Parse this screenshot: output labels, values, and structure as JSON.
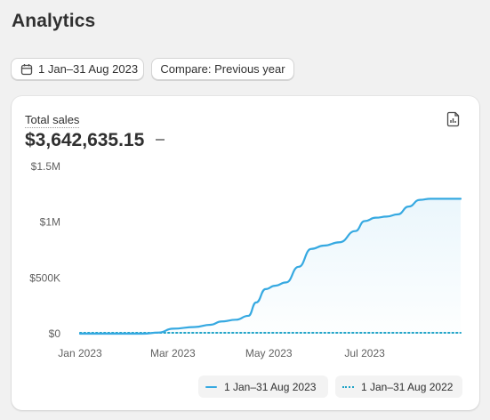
{
  "page": {
    "title": "Analytics"
  },
  "toolbar": {
    "date_range_label": "1 Jan–31 Aug 2023",
    "compare_label": "Compare: Previous year",
    "calendar_icon": "calendar-icon"
  },
  "card": {
    "metric_label": "Total sales",
    "metric_value": "$3,642,635.15",
    "change_indicator": "—",
    "export_icon": "export-report-icon"
  },
  "colors": {
    "primary_series": "#36a9e1",
    "comparison_series": "#1fa3c7"
  },
  "chart_data": {
    "type": "line",
    "y_ticks": [
      "$1.5M",
      "$1M",
      "$500K",
      "$0"
    ],
    "y_tick_values": [
      1500000,
      1000000,
      500000,
      0
    ],
    "x_ticks": [
      "Jan 2023",
      "Mar 2023",
      "May 2023",
      "Jul 2023"
    ],
    "ylim": [
      0,
      1500000
    ],
    "xlim": [
      "2023-01-01",
      "2023-08-31"
    ],
    "grid": false,
    "legend_placement": "bottom-right",
    "series": [
      {
        "name": "1 Jan–31 Aug 2023",
        "style": "solid",
        "area_fill": true,
        "x": [
          "2023-01-01",
          "2023-01-20",
          "2023-02-01",
          "2023-02-10",
          "2023-02-20",
          "2023-03-01",
          "2023-03-15",
          "2023-03-25",
          "2023-04-01",
          "2023-04-10",
          "2023-04-18",
          "2023-04-23",
          "2023-04-29",
          "2023-05-05",
          "2023-05-12",
          "2023-05-20",
          "2023-05-28",
          "2023-06-05",
          "2023-06-15",
          "2023-06-25",
          "2023-07-01",
          "2023-07-08",
          "2023-07-15",
          "2023-07-22",
          "2023-07-29",
          "2023-08-05",
          "2023-08-12",
          "2023-08-20",
          "2023-08-31"
        ],
        "values": [
          0,
          0,
          0,
          0,
          10000,
          45000,
          60000,
          80000,
          110000,
          125000,
          160000,
          280000,
          400000,
          430000,
          460000,
          600000,
          760000,
          790000,
          820000,
          920000,
          1010000,
          1040000,
          1050000,
          1070000,
          1140000,
          1200000,
          1210000,
          1210000,
          1210000
        ]
      },
      {
        "name": "1 Jan–31 Aug 2022",
        "style": "dotted",
        "area_fill": false,
        "x": [
          "2023-01-01",
          "2023-08-31"
        ],
        "values": [
          0,
          0
        ]
      }
    ]
  }
}
